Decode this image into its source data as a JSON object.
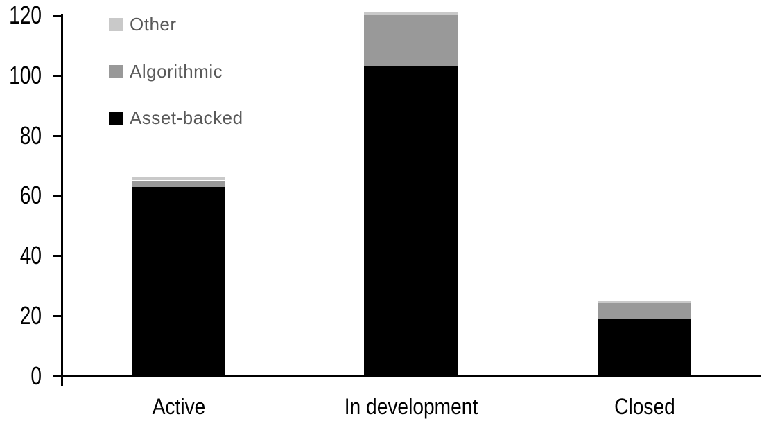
{
  "chart_data": {
    "type": "bar",
    "stacked": true,
    "title": "",
    "xlabel": "",
    "ylabel": "",
    "categories": [
      "Active",
      "In development",
      "Closed"
    ],
    "series": [
      {
        "name": "Asset-backed",
        "color": "#000000",
        "values": [
          63,
          103,
          19
        ]
      },
      {
        "name": "Algorithmic",
        "color": "#999999",
        "values": [
          2,
          17,
          5
        ]
      },
      {
        "name": "Other",
        "color": "#c9c9c9",
        "values": [
          1,
          1,
          1
        ]
      }
    ],
    "totals": [
      66,
      121,
      25
    ],
    "ylim": [
      0,
      120
    ],
    "ytick_step": 20,
    "ytick_labels": [
      "0",
      "20",
      "40",
      "60",
      "80",
      "100",
      "120"
    ],
    "grid": false,
    "legend_position": "top-left-inside",
    "legend_order_top_to_bottom": [
      "Other",
      "Algorithmic",
      "Asset-backed"
    ]
  },
  "colors": {
    "background": "#ffffff",
    "axis": "#000000",
    "tick_label_text": "#000000",
    "category_label_text": "#000000",
    "legend_text": "#595959"
  }
}
